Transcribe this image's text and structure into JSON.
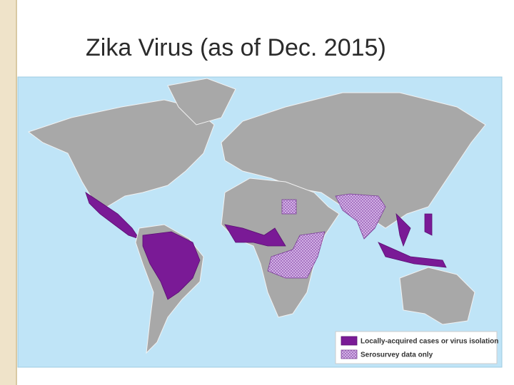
{
  "title": "Zika Virus (as of Dec. 2015)",
  "legend": [
    {
      "label": "Locally-acquired cases or virus isolation"
    },
    {
      "label": "Serosurvey data only"
    }
  ]
}
